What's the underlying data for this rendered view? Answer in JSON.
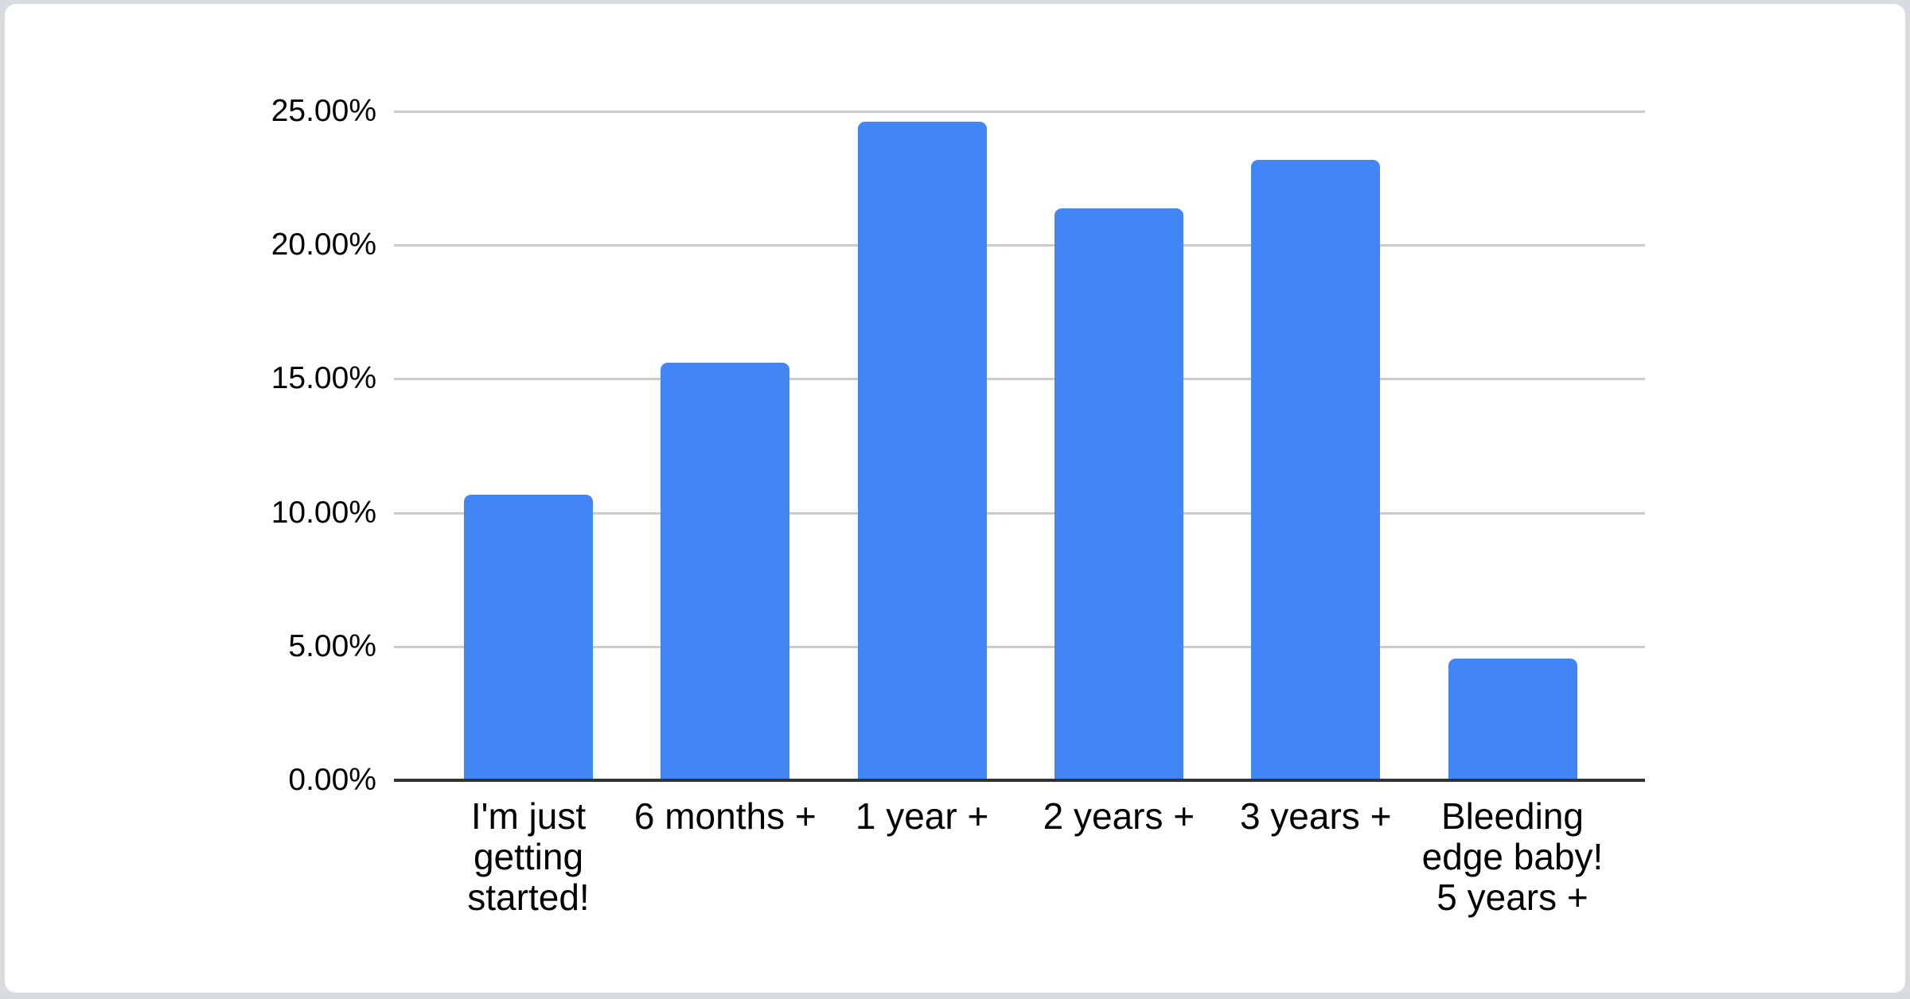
{
  "page": {
    "background_color": "#d8dce1",
    "card_color": "#ffffff"
  },
  "chart_data": {
    "type": "bar",
    "categories": [
      "I'm just getting started!",
      "6 months +",
      "1 year +",
      "2 years +",
      "3 years +",
      "Bleeding edge baby! 5 years +"
    ],
    "values": [
      10.66,
      15.61,
      24.61,
      21.36,
      23.19,
      4.55
    ],
    "unit": "percent",
    "series_color": "#4285f4",
    "y_axis": {
      "ticks": [
        {
          "label": "0.00%",
          "value": 0
        },
        {
          "label": "5.00%",
          "value": 5
        },
        {
          "label": "10.00%",
          "value": 10
        },
        {
          "label": "15.00%",
          "value": 15
        },
        {
          "label": "20.00%",
          "value": 20
        },
        {
          "label": "25.00%",
          "value": 25
        }
      ]
    },
    "ylim": [
      0,
      25
    ],
    "grid": true,
    "legend": "none",
    "gridline_color": "#cccccc",
    "axis_color": "#333333",
    "text_color": "#000000",
    "xlabel": "",
    "ylabel": ""
  }
}
